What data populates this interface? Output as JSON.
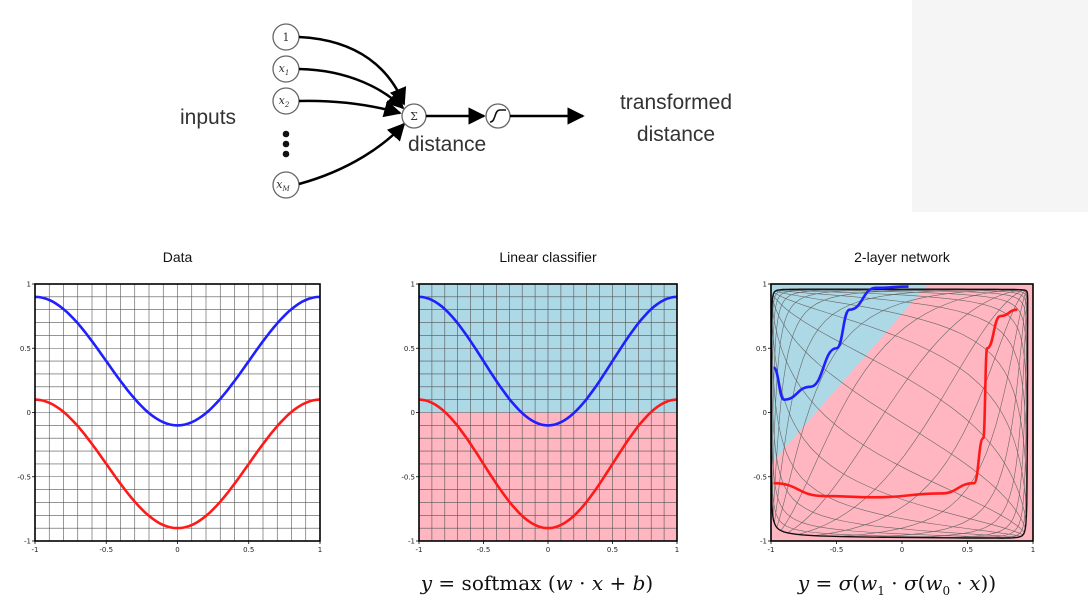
{
  "network": {
    "inputs_label": "inputs",
    "nodes": [
      "1",
      "x1",
      "x2",
      "xM"
    ],
    "sum_symbol": "Σ",
    "distance_label": "distance",
    "output_label_line1": "transformed",
    "output_label_line2": "distance"
  },
  "formulas": {
    "linear": "y = softmax (w · x + b)",
    "network": "y = σ(w1 · σ(w0 · x))"
  },
  "colors": {
    "blue_curve": "#2020ff",
    "red_curve": "#ff1a1a",
    "blue_region": "#add8e6",
    "red_region": "#ffb6c1",
    "grid": "#555555"
  },
  "chart_data": [
    {
      "type": "line",
      "title": "Data",
      "xlim": [
        -1,
        1
      ],
      "ylim": [
        -1,
        1
      ],
      "xticks": [
        "-1",
        "-0.5",
        "0",
        "0.5",
        "1"
      ],
      "yticks": [
        "1",
        "0.5",
        "0",
        "-0.5",
        "-1"
      ],
      "grid": true,
      "series": [
        {
          "color": "blue",
          "x": [
            -1,
            -0.5,
            0,
            0.5,
            1
          ],
          "y": [
            0.9,
            0.4,
            -0.1,
            0.4,
            0.9
          ]
        },
        {
          "color": "red",
          "x": [
            -1,
            -0.5,
            0,
            0.5,
            1
          ],
          "y": [
            0.1,
            -0.4,
            -0.9,
            -0.4,
            0.1
          ]
        }
      ]
    },
    {
      "type": "line",
      "title": "Linear classifier",
      "xlim": [
        -1,
        1
      ],
      "ylim": [
        -1,
        1
      ],
      "xticks": [
        "-1",
        "-0.5",
        "0",
        "0.5",
        "1"
      ],
      "yticks": [
        "1",
        "0.5",
        "0",
        "-0.5",
        "-1"
      ],
      "grid": true,
      "regions": [
        {
          "color": "lightblue",
          "y_range": [
            0,
            1
          ]
        },
        {
          "color": "pink",
          "y_range": [
            -1,
            0
          ]
        }
      ],
      "series": [
        {
          "color": "blue",
          "x": [
            -1,
            -0.5,
            0,
            0.5,
            1
          ],
          "y": [
            0.9,
            0.4,
            -0.1,
            0.4,
            0.9
          ]
        },
        {
          "color": "red",
          "x": [
            -1,
            -0.5,
            0,
            0.5,
            1
          ],
          "y": [
            0.1,
            -0.4,
            -0.9,
            -0.4,
            0.1
          ]
        }
      ]
    },
    {
      "type": "line",
      "title": "2-layer network",
      "xlim": [
        -1,
        1
      ],
      "ylim": [
        -1,
        1
      ],
      "xticks": [
        "-1",
        "-0.5",
        "0",
        "0.5",
        "1"
      ],
      "yticks": [
        "1",
        "0.5",
        "0",
        "-0.5",
        "-1"
      ],
      "grid": "warped",
      "series": [
        {
          "color": "blue",
          "x": [
            -0.98,
            -0.9,
            -0.7,
            -0.5,
            -0.4,
            -0.2,
            0.05
          ],
          "y": [
            0.35,
            0.1,
            0.2,
            0.5,
            0.8,
            0.97,
            0.98
          ]
        },
        {
          "color": "red",
          "x": [
            -0.98,
            -0.6,
            -0.2,
            0.3,
            0.55,
            0.62,
            0.65,
            0.75,
            0.88
          ],
          "y": [
            -0.55,
            -0.65,
            -0.66,
            -0.63,
            -0.55,
            -0.2,
            0.5,
            0.75,
            0.8
          ]
        }
      ]
    }
  ]
}
